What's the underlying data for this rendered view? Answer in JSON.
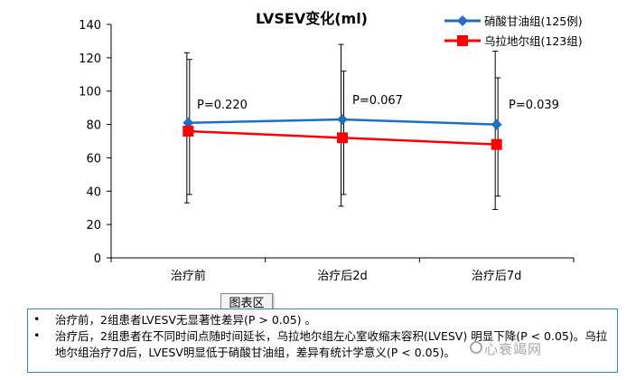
{
  "chart_data": {
    "type": "line",
    "title": "LVSEV变化(ml)",
    "categories": [
      "治疗前",
      "治疗后2d",
      "治疗后7d"
    ],
    "ylim": [
      0,
      140
    ],
    "yticks": [
      0,
      20,
      40,
      60,
      80,
      100,
      120,
      140
    ],
    "grid": false,
    "legend_position": "top-right",
    "series": [
      {
        "name": "硝酸甘油组(125例)",
        "color": "#1f6fc0",
        "marker": "diamond",
        "values": [
          81,
          83,
          80
        ],
        "err_low": [
          33,
          31,
          29
        ],
        "err_high": [
          123,
          128,
          124
        ]
      },
      {
        "name": "乌拉地尔组(123组)",
        "color": "#ff0000",
        "marker": "square",
        "values": [
          76,
          72,
          68
        ],
        "err_low": [
          38,
          38,
          37
        ],
        "err_high": [
          119,
          112,
          108
        ]
      }
    ],
    "annotations": [
      "P=0.220",
      "P=0.067",
      "P=0.039"
    ]
  },
  "tooltip": "图表区",
  "notes": [
    "治疗前，2组患者LVESV无显著性差异(P > 0.05) 。",
    "治疗后，2组患者在不同时间点随时间延长，乌拉地尔组左心室收缩末容积(LVESV) 明显下降(P < 0.05)。乌拉地尔组治疗7d后，LVESV明显低于硝酸甘油组，差异有统计学意义(P < 0.05)。"
  ],
  "watermark": "心衰竭网"
}
